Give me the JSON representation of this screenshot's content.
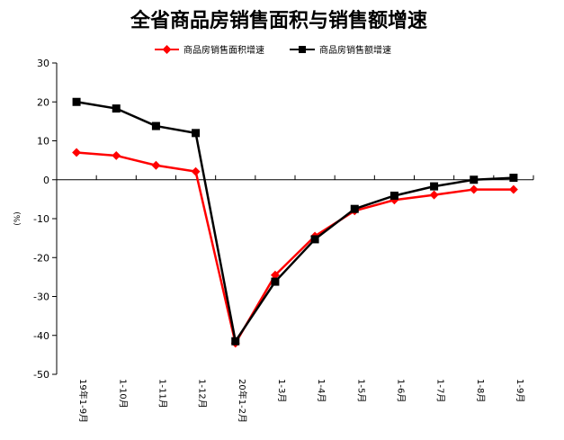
{
  "chart_data": {
    "type": "line",
    "title": "全省商品房销售面积与销售额增速",
    "ylabel": "(%)",
    "xlabel": "",
    "ylim": [
      -50,
      30
    ],
    "yticks": [
      30,
      20,
      10,
      0,
      -10,
      -20,
      -30,
      -40,
      -50
    ],
    "grid": false,
    "legend_position": "top",
    "categories": [
      "19年1-9月",
      "1-10月",
      "1-11月",
      "1-12月",
      "20年1-2月",
      "1-3月",
      "1-4月",
      "1-5月",
      "1-6月",
      "1-7月",
      "1-8月",
      "1-9月"
    ],
    "series": [
      {
        "name": "商品房销售面积增速",
        "color": "#ff0000",
        "marker": "diamond",
        "values": [
          7.0,
          6.2,
          3.7,
          2.1,
          -42.0,
          -24.5,
          -14.5,
          -8.0,
          -5.2,
          -3.9,
          -2.5,
          -2.5
        ]
      },
      {
        "name": "商品房销售额增速",
        "color": "#000000",
        "marker": "square",
        "values": [
          20.0,
          18.3,
          13.8,
          12.0,
          -41.5,
          -26.2,
          -15.3,
          -7.5,
          -4.1,
          -1.7,
          0.0,
          0.5
        ]
      }
    ]
  }
}
